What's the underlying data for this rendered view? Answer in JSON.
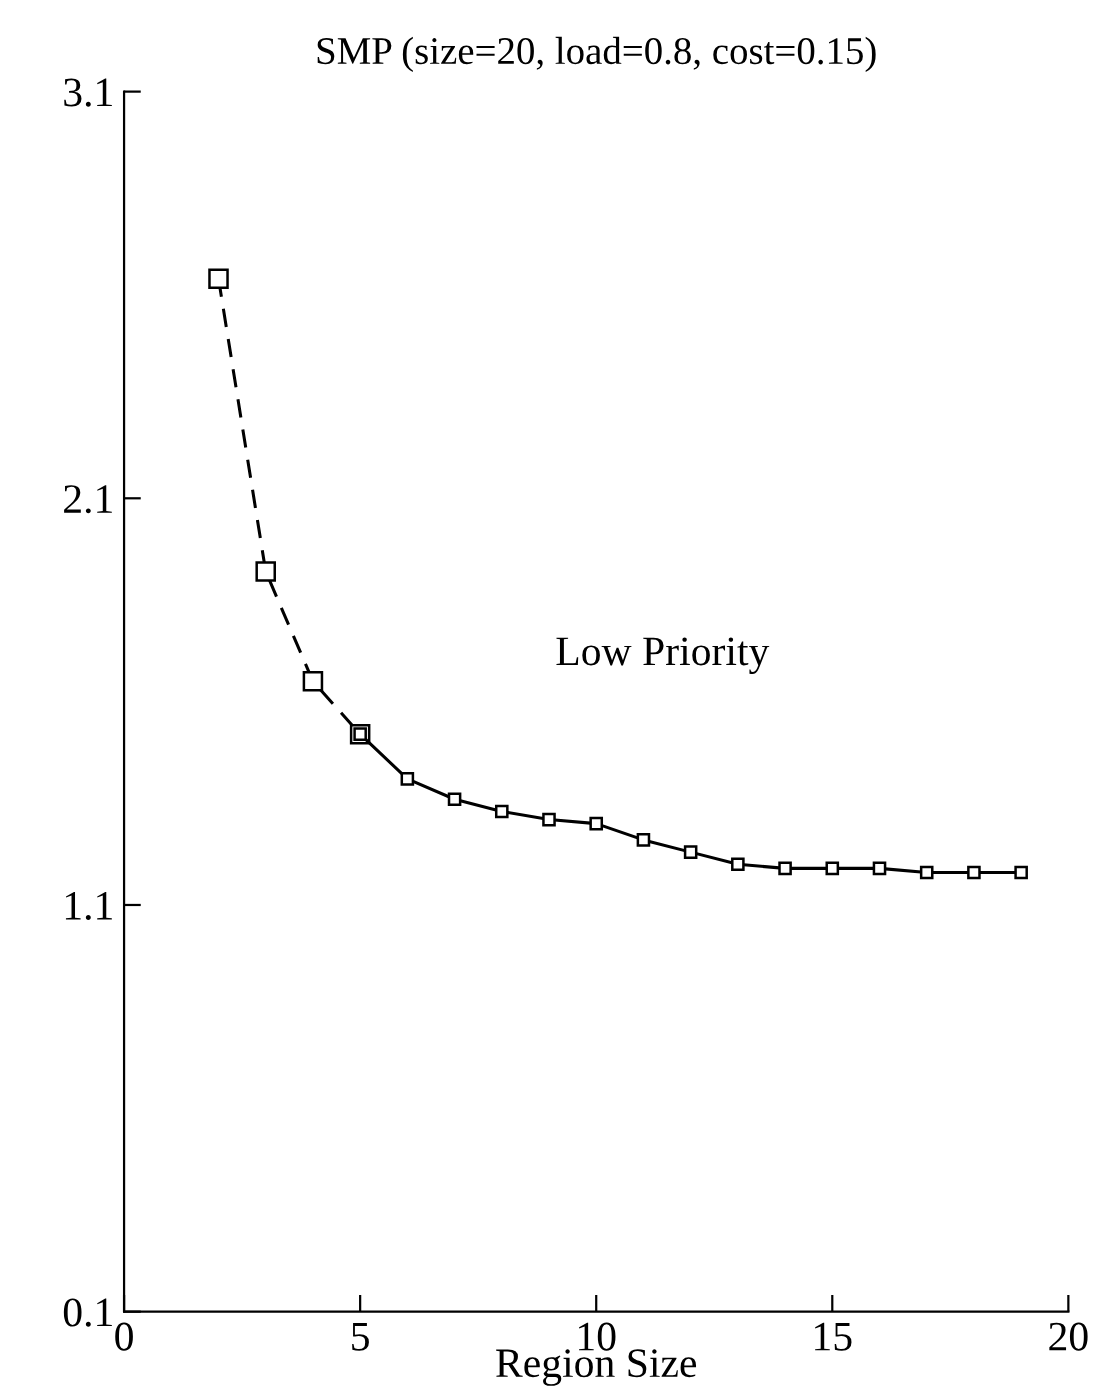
{
  "chart_data": {
    "type": "line",
    "title": "SMP (size=20, load=0.8, cost=0.15)",
    "xlabel": "Region Size",
    "xlim": [
      0,
      20
    ],
    "xticks": [
      0,
      5,
      10,
      15,
      20
    ],
    "ylim": [
      0.1,
      3.1
    ],
    "yticks": [
      0.1,
      1.1,
      2.1,
      3.1
    ],
    "grid": false,
    "legend": false,
    "marker": "square",
    "annotations": [
      "Low Priority"
    ],
    "series": [
      {
        "color": "#000000",
        "line_style": "dashed",
        "x": [
          2,
          3,
          4,
          5
        ],
        "values": [
          2.64,
          1.92,
          1.65,
          1.52
        ]
      },
      {
        "color": "#000000",
        "line_style": "solid",
        "x": [
          5,
          6,
          7,
          8,
          9,
          10,
          11,
          12,
          13,
          14,
          15,
          16,
          17,
          18,
          19
        ],
        "values": [
          1.52,
          1.41,
          1.36,
          1.33,
          1.31,
          1.3,
          1.26,
          1.23,
          1.2,
          1.19,
          1.19,
          1.19,
          1.18,
          1.18,
          1.18
        ]
      }
    ]
  }
}
